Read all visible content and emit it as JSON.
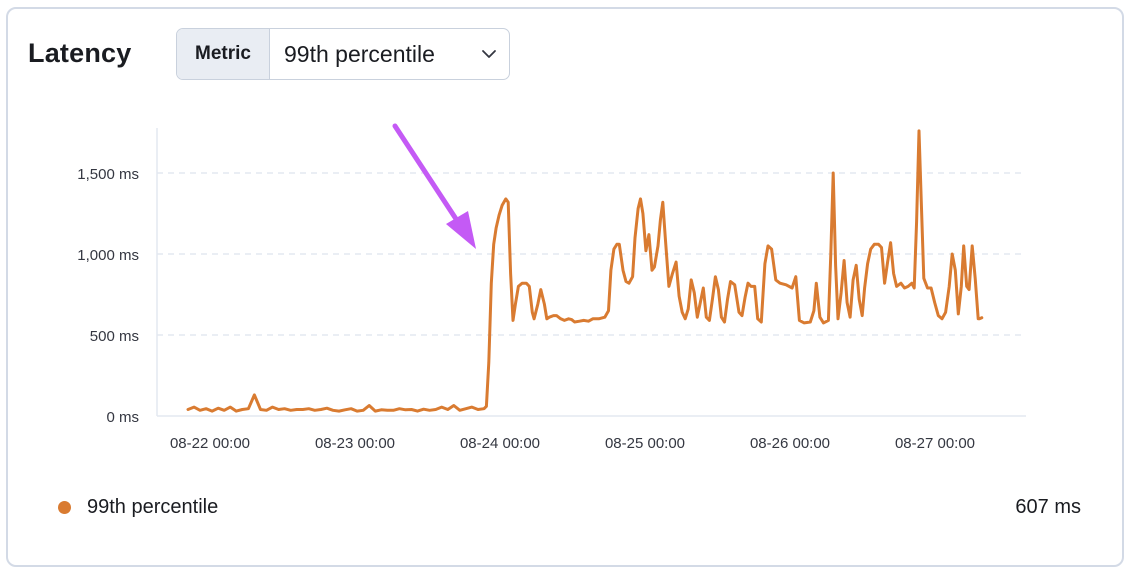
{
  "panel": {
    "title": "Latency",
    "metric_select": {
      "prepend_label": "Metric",
      "selected_value": "99th percentile",
      "icon": "chevron-down-icon"
    }
  },
  "legend": {
    "series_name": "99th percentile",
    "current_value": "607 ms",
    "color": "#d97b31"
  },
  "annotation": {
    "type": "arrow",
    "color": "#c45af5",
    "points_to": "08-24 00:00"
  },
  "chart_data": {
    "type": "line",
    "x_unit": "hours since 08-22 00:00",
    "x_ticks": [
      {
        "x": 0,
        "label": "08-22 00:00"
      },
      {
        "x": 24,
        "label": "08-23 00:00"
      },
      {
        "x": 48,
        "label": "08-24 00:00"
      },
      {
        "x": 72,
        "label": "08-25 00:00"
      },
      {
        "x": 96,
        "label": "08-26 00:00"
      },
      {
        "x": 120,
        "label": "08-27 00:00"
      }
    ],
    "y_ticks": [
      {
        "y": 0,
        "label": "0 ms"
      },
      {
        "y": 500,
        "label": "500 ms"
      },
      {
        "y": 1000,
        "label": "1,000 ms"
      },
      {
        "y": 1500,
        "label": "1,500 ms"
      }
    ],
    "xlim": [
      -1,
      143
    ],
    "ylim": [
      0,
      1780
    ],
    "grid": "horizontal-dashed",
    "series": [
      {
        "name": "99th percentile",
        "color": "#d97b31",
        "points": [
          [
            -1,
            40
          ],
          [
            0,
            55
          ],
          [
            1,
            35
          ],
          [
            2,
            45
          ],
          [
            3,
            30
          ],
          [
            4,
            48
          ],
          [
            5,
            35
          ],
          [
            6,
            55
          ],
          [
            7,
            30
          ],
          [
            8,
            40
          ],
          [
            9,
            45
          ],
          [
            10,
            130
          ],
          [
            11,
            40
          ],
          [
            12,
            35
          ],
          [
            13,
            55
          ],
          [
            14,
            40
          ],
          [
            15,
            45
          ],
          [
            16,
            35
          ],
          [
            17,
            40
          ],
          [
            18,
            40
          ],
          [
            19,
            45
          ],
          [
            20,
            35
          ],
          [
            21,
            40
          ],
          [
            22,
            48
          ],
          [
            23,
            35
          ],
          [
            24,
            30
          ],
          [
            25,
            38
          ],
          [
            26,
            45
          ],
          [
            27,
            30
          ],
          [
            28,
            35
          ],
          [
            29,
            65
          ],
          [
            30,
            30
          ],
          [
            31,
            38
          ],
          [
            32,
            35
          ],
          [
            33,
            35
          ],
          [
            34,
            45
          ],
          [
            35,
            38
          ],
          [
            36,
            40
          ],
          [
            37,
            30
          ],
          [
            38,
            42
          ],
          [
            39,
            35
          ],
          [
            40,
            40
          ],
          [
            41,
            55
          ],
          [
            42,
            40
          ],
          [
            43,
            65
          ],
          [
            44,
            35
          ],
          [
            45,
            45
          ],
          [
            46,
            55
          ],
          [
            47,
            40
          ],
          [
            48,
            45
          ],
          [
            48.4,
            60
          ],
          [
            48.8,
            330
          ],
          [
            49.2,
            820
          ],
          [
            49.6,
            1060
          ],
          [
            50,
            1160
          ],
          [
            50.5,
            1240
          ],
          [
            51,
            1300
          ],
          [
            51.6,
            1340
          ],
          [
            52,
            1320
          ],
          [
            52.4,
            880
          ],
          [
            52.8,
            590
          ],
          [
            53.2,
            690
          ],
          [
            53.7,
            800
          ],
          [
            54.3,
            820
          ],
          [
            55,
            820
          ],
          [
            55.5,
            800
          ],
          [
            56,
            640
          ],
          [
            56.3,
            600
          ],
          [
            56.9,
            690
          ],
          [
            57.4,
            780
          ],
          [
            58,
            690
          ],
          [
            58.4,
            600
          ],
          [
            58.8,
            610
          ],
          [
            59.5,
            620
          ],
          [
            60,
            620
          ],
          [
            60.7,
            600
          ],
          [
            61.3,
            590
          ],
          [
            62,
            600
          ],
          [
            62.5,
            595
          ],
          [
            63,
            580
          ],
          [
            63.8,
            585
          ],
          [
            64.5,
            590
          ],
          [
            65.3,
            585
          ],
          [
            66,
            600
          ],
          [
            67,
            600
          ],
          [
            68,
            610
          ],
          [
            68.6,
            650
          ],
          [
            69,
            900
          ],
          [
            69.5,
            1030
          ],
          [
            70,
            1060
          ],
          [
            70.4,
            1060
          ],
          [
            71,
            900
          ],
          [
            71.5,
            830
          ],
          [
            72,
            820
          ],
          [
            72.6,
            860
          ],
          [
            73,
            1100
          ],
          [
            73.5,
            1280
          ],
          [
            73.9,
            1340
          ],
          [
            74.3,
            1250
          ],
          [
            74.8,
            1020
          ],
          [
            75.3,
            1120
          ],
          [
            75.8,
            900
          ],
          [
            76.2,
            920
          ],
          [
            76.8,
            1050
          ],
          [
            77.2,
            1210
          ],
          [
            77.6,
            1320
          ],
          [
            78,
            1100
          ],
          [
            78.6,
            800
          ],
          [
            79.2,
            880
          ],
          [
            79.8,
            950
          ],
          [
            80.3,
            740
          ],
          [
            80.8,
            640
          ],
          [
            81.3,
            600
          ],
          [
            81.8,
            660
          ],
          [
            82.3,
            840
          ],
          [
            82.8,
            760
          ],
          [
            83.3,
            610
          ],
          [
            83.8,
            700
          ],
          [
            84.3,
            790
          ],
          [
            84.8,
            610
          ],
          [
            85.3,
            590
          ],
          [
            85.8,
            720
          ],
          [
            86.3,
            860
          ],
          [
            86.8,
            780
          ],
          [
            87.3,
            610
          ],
          [
            87.8,
            580
          ],
          [
            88.3,
            720
          ],
          [
            88.8,
            830
          ],
          [
            89.5,
            810
          ],
          [
            90.2,
            640
          ],
          [
            90.7,
            620
          ],
          [
            91.2,
            730
          ],
          [
            91.7,
            820
          ],
          [
            92.2,
            800
          ],
          [
            92.8,
            800
          ],
          [
            93.3,
            600
          ],
          [
            93.9,
            580
          ],
          [
            94.5,
            940
          ],
          [
            95,
            1050
          ],
          [
            95.6,
            1030
          ],
          [
            96.3,
            840
          ],
          [
            97,
            820
          ],
          [
            98,
            810
          ],
          [
            99,
            790
          ],
          [
            99.6,
            860
          ],
          [
            100.2,
            590
          ],
          [
            101,
            575
          ],
          [
            102,
            580
          ],
          [
            102.6,
            650
          ],
          [
            103,
            820
          ],
          [
            103.6,
            610
          ],
          [
            104.2,
            575
          ],
          [
            105,
            590
          ],
          [
            105.4,
            1000
          ],
          [
            105.8,
            1500
          ],
          [
            106.2,
            930
          ],
          [
            106.6,
            600
          ],
          [
            107.1,
            760
          ],
          [
            107.6,
            960
          ],
          [
            108.1,
            700
          ],
          [
            108.6,
            610
          ],
          [
            109.1,
            840
          ],
          [
            109.6,
            930
          ],
          [
            110.1,
            720
          ],
          [
            110.6,
            620
          ],
          [
            111,
            790
          ],
          [
            111.5,
            940
          ],
          [
            112,
            1030
          ],
          [
            112.6,
            1060
          ],
          [
            113.3,
            1060
          ],
          [
            113.8,
            1040
          ],
          [
            114.3,
            820
          ],
          [
            114.8,
            950
          ],
          [
            115.3,
            1070
          ],
          [
            115.8,
            880
          ],
          [
            116.3,
            800
          ],
          [
            117,
            820
          ],
          [
            117.6,
            790
          ],
          [
            118.2,
            800
          ],
          [
            118.8,
            820
          ],
          [
            119.2,
            790
          ],
          [
            119.6,
            1200
          ],
          [
            120,
            1760
          ],
          [
            120.4,
            1300
          ],
          [
            120.8,
            850
          ],
          [
            121.4,
            790
          ],
          [
            122,
            790
          ],
          [
            122.6,
            700
          ],
          [
            123.2,
            620
          ],
          [
            123.8,
            600
          ],
          [
            124.4,
            640
          ],
          [
            125,
            800
          ],
          [
            125.5,
            1000
          ],
          [
            126,
            900
          ],
          [
            126.5,
            630
          ],
          [
            127,
            800
          ],
          [
            127.4,
            1050
          ],
          [
            127.9,
            800
          ],
          [
            128.3,
            780
          ],
          [
            128.8,
            1050
          ],
          [
            129.3,
            850
          ],
          [
            129.8,
            600
          ],
          [
            130,
            600
          ],
          [
            130.4,
            607
          ]
        ]
      }
    ]
  }
}
